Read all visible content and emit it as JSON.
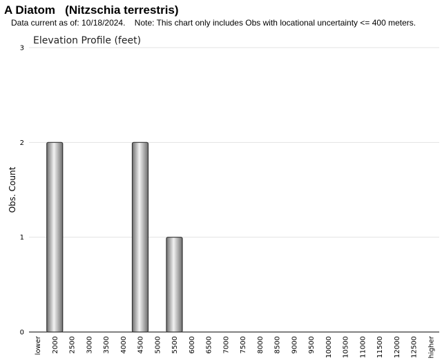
{
  "header": {
    "title": "A Diatom   (Nitzschia terrestris)",
    "note": "Data current as of: 10/18/2024.    Note: This chart only includes Obs with locational uncertainty <= 400 meters."
  },
  "chart_data": {
    "type": "bar",
    "title": "Elevation Profile (feet)",
    "xlabel": "",
    "ylabel": "Obs. Count",
    "categories": [
      "lower",
      "2000",
      "2500",
      "3000",
      "3500",
      "4000",
      "4500",
      "5000",
      "5500",
      "6000",
      "6500",
      "7000",
      "7500",
      "8000",
      "8500",
      "9000",
      "9500",
      "10000",
      "10500",
      "11000",
      "11500",
      "12000",
      "12500",
      "higher"
    ],
    "values": [
      0,
      2,
      0,
      0,
      0,
      0,
      2,
      0,
      1,
      0,
      0,
      0,
      0,
      0,
      0,
      0,
      0,
      0,
      0,
      0,
      0,
      0,
      0,
      0
    ],
    "ylim": [
      0,
      3
    ],
    "yticks": [
      0,
      1,
      2,
      3
    ],
    "grid": true,
    "legend": "none",
    "colors": {
      "bar_light": "#f2f2f2",
      "bar_mid": "#b0b0b0",
      "bar_dark": "#6e6e6e",
      "bar_stroke": "#333333",
      "grid": "#e3e3e3"
    }
  }
}
